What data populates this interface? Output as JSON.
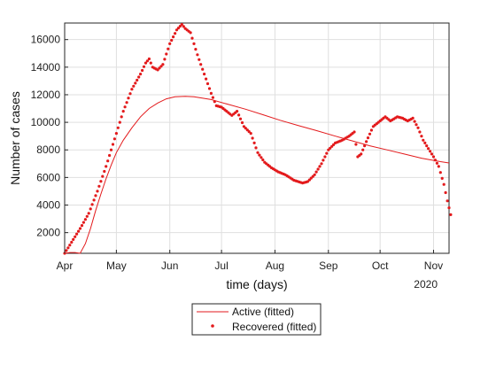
{
  "chart_data": {
    "type": "line",
    "xlabel": "time (days)",
    "ylabel": "Number of cases",
    "year_label": "2020",
    "x_ticks": [
      "Apr",
      "May",
      "Jun",
      "Jul",
      "Aug",
      "Sep",
      "Oct",
      "Nov"
    ],
    "x_tick_dates": [
      "2020-04-01",
      "2020-05-01",
      "2020-06-01",
      "2020-07-01",
      "2020-08-01",
      "2020-09-01",
      "2020-10-01",
      "2020-11-01"
    ],
    "xlim": [
      "2020-04-01",
      "2020-11-10"
    ],
    "y_ticks": [
      2000,
      4000,
      6000,
      8000,
      10000,
      12000,
      14000,
      16000
    ],
    "ylim": [
      500,
      17200
    ],
    "grid": true,
    "legend_position": "bottom-center-outside",
    "colors": {
      "series": "#e31a1c",
      "axis": "#262626",
      "grid": "#dfdfdf"
    },
    "series": [
      {
        "name": "Active (fitted)",
        "style": "line",
        "points": [
          [
            "2020-04-01",
            500
          ],
          [
            "2020-04-04",
            560
          ],
          [
            "2020-04-07",
            560
          ],
          [
            "2020-04-10",
            500
          ],
          [
            "2020-04-13",
            1200
          ],
          [
            "2020-04-16",
            2300
          ],
          [
            "2020-04-19",
            3600
          ],
          [
            "2020-04-22",
            4800
          ],
          [
            "2020-04-25",
            5900
          ],
          [
            "2020-04-28",
            6900
          ],
          [
            "2020-05-01",
            7800
          ],
          [
            "2020-05-05",
            8700
          ],
          [
            "2020-05-10",
            9600
          ],
          [
            "2020-05-15",
            10400
          ],
          [
            "2020-05-20",
            11000
          ],
          [
            "2020-05-25",
            11400
          ],
          [
            "2020-05-30",
            11700
          ],
          [
            "2020-06-04",
            11850
          ],
          [
            "2020-06-10",
            11880
          ],
          [
            "2020-06-15",
            11850
          ],
          [
            "2020-06-25",
            11650
          ],
          [
            "2020-07-05",
            11300
          ],
          [
            "2020-07-15",
            10950
          ],
          [
            "2020-07-25",
            10550
          ],
          [
            "2020-08-04",
            10150
          ],
          [
            "2020-08-15",
            9750
          ],
          [
            "2020-08-25",
            9400
          ],
          [
            "2020-09-05",
            9000
          ],
          [
            "2020-09-15",
            8650
          ],
          [
            "2020-09-25",
            8300
          ],
          [
            "2020-10-05",
            8000
          ],
          [
            "2020-10-15",
            7700
          ],
          [
            "2020-10-25",
            7400
          ],
          [
            "2020-11-05",
            7150
          ],
          [
            "2020-11-10",
            7050
          ]
        ]
      },
      {
        "name": "Recovered (fitted)",
        "style": "markers",
        "points": [
          [
            "2020-04-01",
            500
          ],
          [
            "2020-04-05",
            1300
          ],
          [
            "2020-04-10",
            2300
          ],
          [
            "2020-04-15",
            3400
          ],
          [
            "2020-04-20",
            5000
          ],
          [
            "2020-04-25",
            6800
          ],
          [
            "2020-04-30",
            8800
          ],
          [
            "2020-05-05",
            10800
          ],
          [
            "2020-05-10",
            12400
          ],
          [
            "2020-05-15",
            13500
          ],
          [
            "2020-05-18",
            14300
          ],
          [
            "2020-05-20",
            14600
          ],
          [
            "2020-05-22",
            14000
          ],
          [
            "2020-05-25",
            13800
          ],
          [
            "2020-05-28",
            14200
          ],
          [
            "2020-06-01",
            15700
          ],
          [
            "2020-06-05",
            16700
          ],
          [
            "2020-06-08",
            17100
          ],
          [
            "2020-06-10",
            16800
          ],
          [
            "2020-06-13",
            16500
          ],
          [
            "2020-06-17",
            14900
          ],
          [
            "2020-06-21",
            13500
          ],
          [
            "2020-06-25",
            12100
          ],
          [
            "2020-06-28",
            11200
          ],
          [
            "2020-07-01",
            11100
          ],
          [
            "2020-07-04",
            10800
          ],
          [
            "2020-07-07",
            10500
          ],
          [
            "2020-07-10",
            10800
          ],
          [
            "2020-07-14",
            9700
          ],
          [
            "2020-07-18",
            9200
          ],
          [
            "2020-07-22",
            7800
          ],
          [
            "2020-07-26",
            7100
          ],
          [
            "2020-07-30",
            6700
          ],
          [
            "2020-08-03",
            6400
          ],
          [
            "2020-08-07",
            6200
          ],
          [
            "2020-08-12",
            5800
          ],
          [
            "2020-08-17",
            5600
          ],
          [
            "2020-08-20",
            5700
          ],
          [
            "2020-08-24",
            6200
          ],
          [
            "2020-08-28",
            7000
          ],
          [
            "2020-09-01",
            8000
          ],
          [
            "2020-09-05",
            8500
          ],
          [
            "2020-09-09",
            8700
          ],
          [
            "2020-09-13",
            9000
          ],
          [
            "2020-09-16",
            9300
          ],
          [
            "2020-09-18",
            7500
          ],
          [
            "2020-09-20",
            7700
          ],
          [
            "2020-09-23",
            8600
          ],
          [
            "2020-09-27",
            9700
          ],
          [
            "2020-10-01",
            10100
          ],
          [
            "2020-10-04",
            10400
          ],
          [
            "2020-10-07",
            10100
          ],
          [
            "2020-10-11",
            10400
          ],
          [
            "2020-10-14",
            10300
          ],
          [
            "2020-10-17",
            10100
          ],
          [
            "2020-10-20",
            10300
          ],
          [
            "2020-10-23",
            9600
          ],
          [
            "2020-10-26",
            8700
          ],
          [
            "2020-10-29",
            8100
          ],
          [
            "2020-11-01",
            7500
          ],
          [
            "2020-11-04",
            6800
          ],
          [
            "2020-11-07",
            5500
          ],
          [
            "2020-11-09",
            4300
          ],
          [
            "2020-11-11",
            3300
          ]
        ]
      }
    ]
  }
}
